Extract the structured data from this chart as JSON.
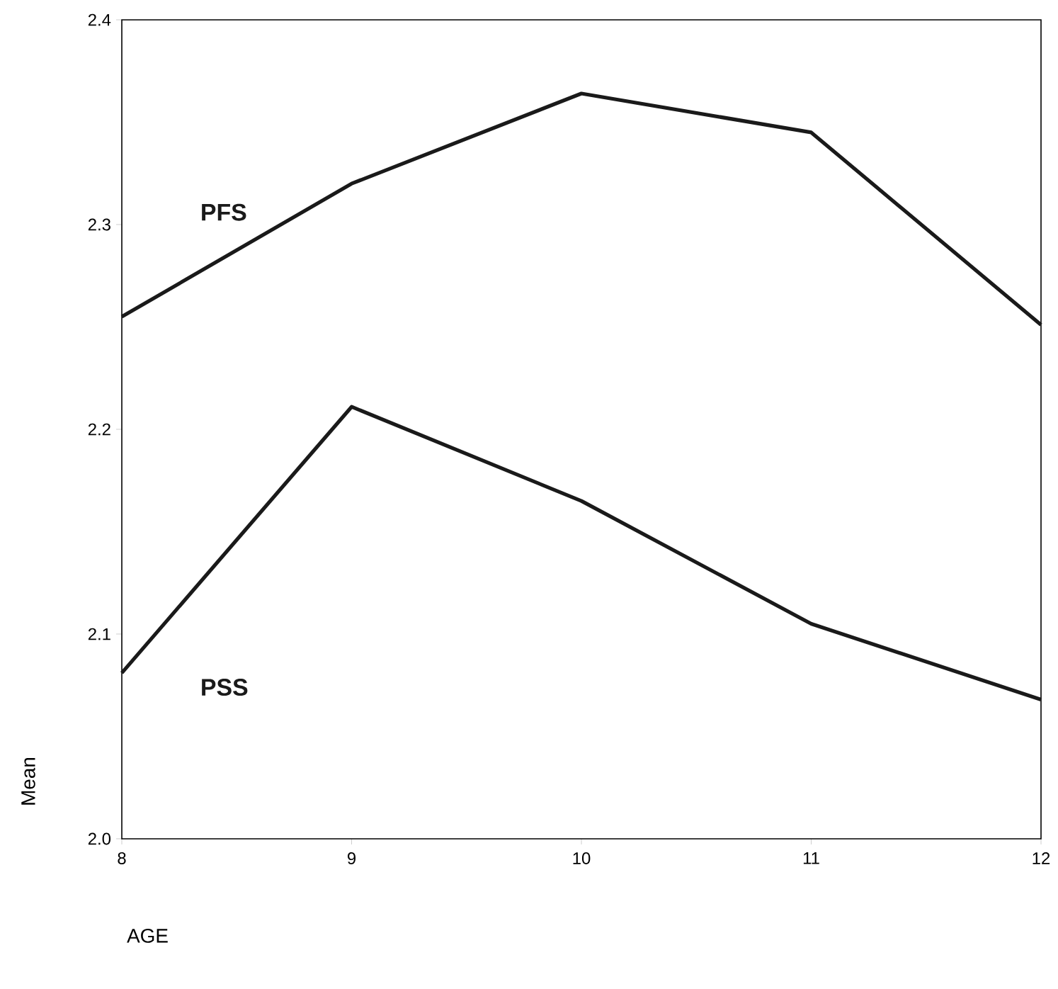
{
  "chart_data": {
    "type": "line",
    "xlabel": "AGE",
    "ylabel": "Mean",
    "x": [
      8,
      9,
      10,
      11,
      12
    ],
    "series": [
      {
        "name": "PFS",
        "color": "#1a1a1a",
        "values": [
          2.255,
          2.32,
          2.364,
          2.345,
          2.251
        ]
      },
      {
        "name": "PSS",
        "color": "#1a1a1a",
        "values": [
          2.081,
          2.211,
          2.165,
          2.105,
          2.068
        ]
      }
    ],
    "xlim": [
      8,
      12
    ],
    "xticks": [
      8,
      9,
      10,
      11,
      12
    ],
    "ylim": [
      2.0,
      2.4
    ],
    "yticks": [
      {
        "value": 2,
        "label": "2.0"
      },
      2.1,
      2.2,
      2.3,
      2.4
    ],
    "grid": false,
    "legend": false,
    "marker": "none",
    "line_style": "solid"
  }
}
